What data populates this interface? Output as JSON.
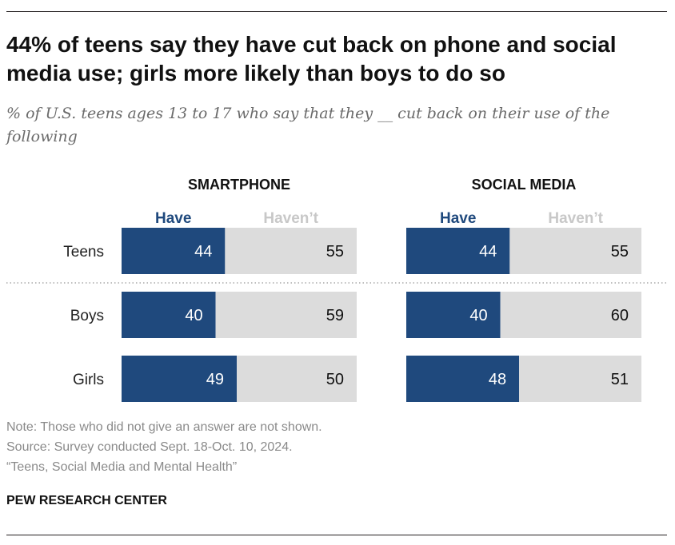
{
  "header": {
    "title": "44% of teens say they have cut back on phone and social media use; girls more likely than boys to do so",
    "subtitle": "% of U.S. teens ages 13 to 17 who say that they __ cut back on their use of the following"
  },
  "colors": {
    "have": "#1f497d",
    "havent": "#dcdcdc",
    "have_label": "#1f497d",
    "havent_label": "#c8c8c8"
  },
  "chart_data": {
    "type": "bar",
    "orientation": "horizontal",
    "stacked": true,
    "categories": [
      "Teens",
      "Boys",
      "Girls"
    ],
    "series_labels": [
      "Have",
      "Haven’t"
    ],
    "panels": [
      {
        "title": "SMARTPHONE",
        "series": [
          {
            "name": "Have",
            "values": [
              44,
              40,
              49
            ]
          },
          {
            "name": "Haven’t",
            "values": [
              55,
              59,
              50
            ]
          }
        ]
      },
      {
        "title": "SOCIAL MEDIA",
        "series": [
          {
            "name": "Have",
            "values": [
              44,
              40,
              48
            ]
          },
          {
            "name": "Haven’t",
            "values": [
              55,
              60,
              51
            ]
          }
        ]
      }
    ]
  },
  "footer": {
    "note": "Note: Those who did not give an answer are not shown.",
    "source": "Source: Survey conducted Sept. 18-Oct. 10, 2024.",
    "report": "“Teens, Social Media and Mental Health”",
    "brand": "PEW RESEARCH CENTER"
  }
}
